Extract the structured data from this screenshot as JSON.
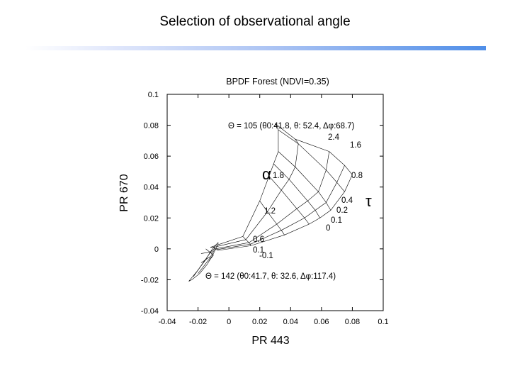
{
  "slide": {
    "title": "Selection of observational angle",
    "accent_color": "#4f8ee8"
  },
  "chart_data": {
    "type": "line",
    "title": "BPDF Forest  (NDVI=0.35)",
    "xlabel": "PR 443",
    "ylabel": "PR 670",
    "xlim": [
      -0.04,
      0.1
    ],
    "ylim": [
      -0.04,
      0.1
    ],
    "xticks": [
      "-0.04",
      "-0.02",
      "0",
      "0.02",
      "0.04",
      "0.06",
      "0.08",
      "0.1"
    ],
    "yticks": [
      "-0.04",
      "-0.02",
      "0",
      "0.02",
      "0.04",
      "0.06",
      "0.08",
      "0.1"
    ],
    "grid": false,
    "description_labels": {
      "theta105": "Θ = 105 (θ0:41.8, θ: 52.4, Δφ:68.7)",
      "theta142": "Θ = 142 (θ0:41.7, θ: 32.6, Δφ:117.4)",
      "alpha": "α",
      "tau": "τ"
    },
    "series": [
      {
        "group": "theta105-alpha-lines",
        "lines": [
          [
            [
              -0.007,
              -0.001
            ],
            [
              0.014,
              0.002
            ],
            [
              0.036,
              0.009
            ],
            [
              0.052,
              0.016
            ],
            [
              0.059,
              0.02
            ],
            [
              0.066,
              0.025
            ],
            [
              0.075,
              0.037
            ],
            [
              0.08,
              0.048
            ]
          ],
          [
            [
              -0.008,
              -0.0005
            ],
            [
              0.014,
              0.003
            ],
            [
              0.034,
              0.012
            ],
            [
              0.049,
              0.02
            ],
            [
              0.056,
              0.025
            ],
            [
              0.063,
              0.03
            ],
            [
              0.07,
              0.043
            ],
            [
              0.075,
              0.054
            ]
          ],
          [
            [
              -0.009,
              0.0
            ],
            [
              0.013,
              0.004
            ],
            [
              0.031,
              0.016
            ],
            [
              0.044,
              0.026
            ],
            [
              0.051,
              0.031
            ],
            [
              0.058,
              0.037
            ],
            [
              0.063,
              0.051
            ],
            [
              0.065,
              0.063
            ]
          ],
          [
            [
              -0.01,
              0.001
            ],
            [
              0.011,
              0.006
            ],
            [
              0.025,
              0.024
            ],
            [
              0.034,
              0.038
            ],
            [
              0.039,
              0.045
            ],
            [
              0.043,
              0.053
            ],
            [
              0.045,
              0.068
            ],
            [
              0.043,
              0.071
            ]
          ],
          [
            [
              -0.012,
              0.001
            ],
            [
              0.009,
              0.008
            ],
            [
              0.02,
              0.031
            ],
            [
              0.026,
              0.047
            ],
            [
              0.029,
              0.055
            ],
            [
              0.032,
              0.063
            ],
            [
              0.032,
              0.077
            ],
            [
              0.03,
              0.081
            ]
          ]
        ],
        "tau_labels": [
          "-0.1",
          "0.1",
          "0.6",
          "1.2",
          "1.8",
          "2.4",
          "1.6",
          "0.8",
          "0.4",
          "0.2",
          "0.1",
          "0"
        ]
      },
      {
        "group": "theta142-ellipse",
        "lines": [
          [
            [
              -0.026,
              -0.021
            ],
            [
              -0.021,
              -0.015
            ],
            [
              -0.015,
              -0.007
            ],
            [
              -0.012,
              -0.002
            ],
            [
              -0.009,
              0.002
            ],
            [
              -0.007,
              0.004
            ],
            [
              -0.007,
              0.003
            ],
            [
              -0.01,
              -0.003
            ],
            [
              -0.014,
              -0.01
            ],
            [
              -0.019,
              -0.016
            ],
            [
              -0.024,
              -0.02
            ],
            [
              -0.026,
              -0.021
            ]
          ],
          [
            [
              -0.023,
              -0.018
            ],
            [
              -0.016,
              -0.008
            ],
            [
              -0.011,
              -0.001
            ]
          ],
          [
            [
              -0.02,
              -0.016
            ],
            [
              -0.013,
              -0.007
            ],
            [
              -0.009,
              0.0
            ]
          ],
          [
            [
              -0.018,
              -0.009
            ],
            [
              -0.012,
              -0.005
            ]
          ],
          [
            [
              -0.015,
              0.0
            ],
            [
              -0.01,
              -0.004
            ],
            [
              -0.013,
              -0.008
            ]
          ],
          [
            [
              -0.018,
              -0.003
            ],
            [
              -0.011,
              -0.002
            ],
            [
              -0.009,
              0.001
            ]
          ]
        ]
      }
    ]
  }
}
